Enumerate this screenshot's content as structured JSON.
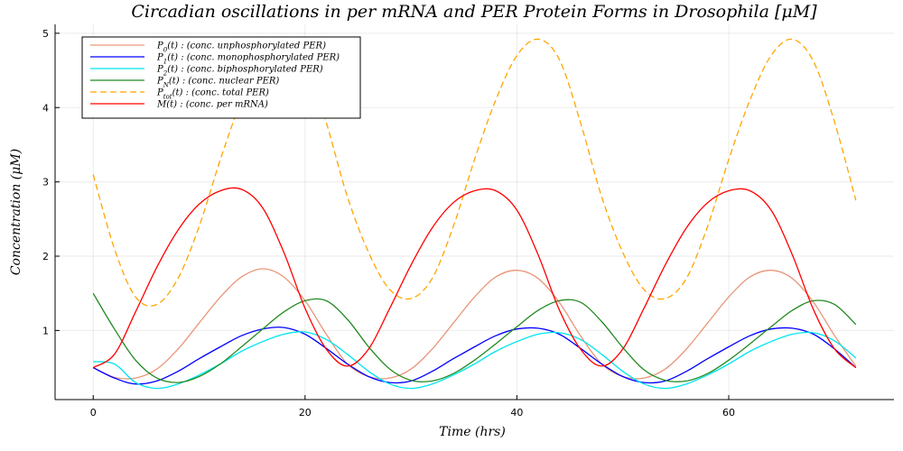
{
  "chart_data": {
    "type": "line",
    "title": "Circadian oscillations in per mRNA and PER Protein Forms in Drosophila [μM]",
    "xlabel": "Time (hrs)",
    "ylabel": "Concentration (μM)",
    "xlim": [
      -3.6,
      75.6
    ],
    "ylim": [
      0.07,
      5.12
    ],
    "xticks": [
      0,
      20,
      40,
      60
    ],
    "yticks": [
      1,
      2,
      3,
      4,
      5
    ],
    "grid": true,
    "legend_position": "top-left",
    "x": [
      0,
      2,
      4,
      6,
      8,
      10,
      12,
      14,
      16,
      18,
      20,
      22,
      24,
      26,
      28,
      30,
      32,
      34,
      36,
      38,
      40,
      42,
      44,
      46,
      48,
      50,
      52,
      54,
      56,
      58,
      60,
      62,
      64,
      66,
      68,
      70,
      72
    ],
    "series": [
      {
        "name": "P0(t) : (conc. unphosphorylated PER)",
        "label_main": "P",
        "label_sub": "0",
        "label_rest": "(t) : (conc. unphosphorylated PER)",
        "color": "#e9967a",
        "dash": "solid",
        "values": [
          0.5,
          0.37,
          0.36,
          0.48,
          0.75,
          1.1,
          1.45,
          1.72,
          1.83,
          1.72,
          1.4,
          0.95,
          0.55,
          0.38,
          0.36,
          0.48,
          0.75,
          1.1,
          1.45,
          1.72,
          1.81,
          1.7,
          1.38,
          0.93,
          0.55,
          0.38,
          0.36,
          0.48,
          0.75,
          1.1,
          1.45,
          1.72,
          1.81,
          1.7,
          1.38,
          0.93,
          0.52
        ]
      },
      {
        "name": "P1(t) : (conc. monophosphorylated PER)",
        "label_main": "P",
        "label_sub": "1",
        "label_rest": "(t) : (conc. monophosphorylated PER)",
        "color": "#0000ff",
        "dash": "solid",
        "values": [
          0.5,
          0.36,
          0.28,
          0.32,
          0.45,
          0.62,
          0.78,
          0.93,
          1.02,
          1.04,
          0.95,
          0.76,
          0.55,
          0.38,
          0.3,
          0.32,
          0.45,
          0.62,
          0.78,
          0.93,
          1.02,
          1.03,
          0.95,
          0.76,
          0.55,
          0.38,
          0.3,
          0.32,
          0.45,
          0.62,
          0.78,
          0.93,
          1.02,
          1.03,
          0.95,
          0.75,
          0.5
        ]
      },
      {
        "name": "P2(t) : (conc. biphosphorylated PER)",
        "label_main": "P",
        "label_sub": "2",
        "label_rest": "(t) : (conc. biphosphorylated PER)",
        "color": "#00e5ee",
        "dash": "solid",
        "values": [
          0.58,
          0.55,
          0.3,
          0.22,
          0.28,
          0.4,
          0.55,
          0.72,
          0.85,
          0.95,
          0.98,
          0.88,
          0.68,
          0.45,
          0.28,
          0.22,
          0.28,
          0.4,
          0.55,
          0.72,
          0.85,
          0.95,
          0.97,
          0.88,
          0.68,
          0.45,
          0.28,
          0.22,
          0.28,
          0.4,
          0.55,
          0.72,
          0.85,
          0.95,
          0.97,
          0.86,
          0.63
        ]
      },
      {
        "name": "PN(t) : (conc. nuclear PER)",
        "label_main": "P",
        "label_sub": "N",
        "label_rest": "(t) : (conc. nuclear PER)",
        "color": "#228b22",
        "dash": "solid",
        "values": [
          1.5,
          1.02,
          0.6,
          0.36,
          0.3,
          0.38,
          0.55,
          0.78,
          1.02,
          1.25,
          1.4,
          1.4,
          1.15,
          0.78,
          0.48,
          0.33,
          0.32,
          0.42,
          0.6,
          0.82,
          1.05,
          1.27,
          1.4,
          1.38,
          1.12,
          0.77,
          0.47,
          0.33,
          0.32,
          0.42,
          0.6,
          0.82,
          1.05,
          1.27,
          1.4,
          1.35,
          1.08
        ]
      },
      {
        "name": "Ptot(t) : (conc. total PER)",
        "label_main": "P",
        "label_sub": "tot",
        "label_rest": "(t) :  (conc. total PER)",
        "color": "#ffa500",
        "dash": "dashed",
        "values": [
          3.1,
          2.1,
          1.45,
          1.35,
          1.7,
          2.4,
          3.3,
          4.1,
          4.7,
          4.95,
          4.65,
          3.8,
          2.8,
          2.05,
          1.55,
          1.43,
          1.7,
          2.4,
          3.3,
          4.1,
          4.7,
          4.92,
          4.65,
          3.8,
          2.8,
          2.05,
          1.55,
          1.43,
          1.7,
          2.4,
          3.3,
          4.1,
          4.7,
          4.92,
          4.62,
          3.8,
          2.75
        ]
      },
      {
        "name": "M(t) : (conc. per mRNA)",
        "label_main": "M",
        "label_sub": "",
        "label_rest": "(t) : (conc. per mRNA)",
        "color": "#ff0000",
        "dash": "solid",
        "values": [
          0.5,
          0.68,
          1.25,
          1.85,
          2.35,
          2.7,
          2.88,
          2.9,
          2.65,
          2.05,
          1.3,
          0.75,
          0.52,
          0.75,
          1.3,
          1.88,
          2.38,
          2.72,
          2.88,
          2.88,
          2.62,
          2.02,
          1.28,
          0.75,
          0.52,
          0.75,
          1.3,
          1.88,
          2.38,
          2.72,
          2.88,
          2.88,
          2.62,
          2.02,
          1.28,
          0.75,
          0.5
        ]
      }
    ]
  }
}
